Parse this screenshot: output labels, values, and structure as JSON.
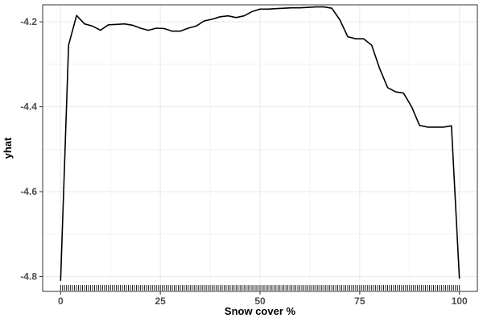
{
  "chart_data": {
    "type": "line",
    "title": "",
    "xlabel": "Snow cover %",
    "ylabel": "yhat",
    "xlim": [
      -4.5,
      104.5
    ],
    "ylim": [
      -4.835,
      -4.16
    ],
    "x_ticks": [
      0,
      25,
      50,
      75,
      100
    ],
    "x_tick_labels": [
      "0",
      "25",
      "50",
      "75",
      "100"
    ],
    "y_ticks": [
      -4.8,
      -4.6,
      -4.4,
      -4.2
    ],
    "y_tick_labels": [
      "-4.8",
      "-4.6",
      "-4.4",
      "-4.2"
    ],
    "grid": true,
    "legend": "none",
    "rug": true,
    "series": [
      {
        "x": [
          0,
          2,
          4,
          6,
          8,
          10,
          12,
          14,
          16,
          18,
          20,
          22,
          24,
          26,
          28,
          30,
          32,
          34,
          36,
          38,
          40,
          42,
          44,
          46,
          48,
          50,
          52,
          54,
          56,
          58,
          60,
          62,
          64,
          66,
          68,
          70,
          72,
          74,
          76,
          78,
          80,
          82,
          84,
          86,
          88,
          90,
          92,
          94,
          96,
          98,
          100
        ],
        "y": [
          -4.81,
          -4.255,
          -4.185,
          -4.205,
          -4.21,
          -4.22,
          -4.207,
          -4.206,
          -4.205,
          -4.208,
          -4.215,
          -4.22,
          -4.215,
          -4.216,
          -4.222,
          -4.222,
          -4.215,
          -4.21,
          -4.198,
          -4.194,
          -4.188,
          -4.186,
          -4.19,
          -4.186,
          -4.176,
          -4.17,
          -4.17,
          -4.169,
          -4.168,
          -4.167,
          -4.167,
          -4.166,
          -4.165,
          -4.165,
          -4.168,
          -4.195,
          -4.235,
          -4.24,
          -4.24,
          -4.255,
          -4.31,
          -4.355,
          -4.365,
          -4.368,
          -4.4,
          -4.444,
          -4.448,
          -4.448,
          -4.448,
          -4.445,
          -4.805
        ]
      }
    ]
  },
  "colors": {
    "line": "#000000",
    "grid": "#ebebeb",
    "panel_border": "#333333",
    "tick_text": "#4d4d4d"
  }
}
